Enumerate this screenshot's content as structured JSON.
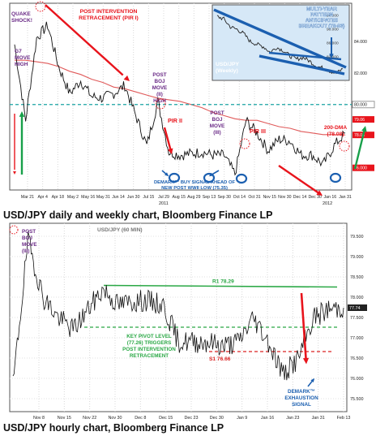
{
  "colors": {
    "price": "#111111",
    "annotation_red": "#e8141c",
    "annotation_purple": "#6a2a86",
    "annotation_green": "#18a04a",
    "annotation_blue": "#1b5fb0",
    "dma": "#e05a5a",
    "support_teal": "#1aa3a3",
    "resistance_green": "#2aa845",
    "support_red": "#d92020",
    "pivot_green": "#2aa845"
  },
  "captions": {
    "top": "USD/JPY daily and weekly chart, Bloomberg Finance LP",
    "bottom": "USD/JPY hourly chart, Bloomberg Finance LP"
  },
  "chart_data": [
    {
      "type": "line",
      "y_ticks": [
        "84.000",
        "82.000",
        "80.000",
        "78.000",
        "76.000"
      ],
      "x_labels": [
        "Mar 21",
        "Apr 4",
        "Apr 18",
        "May 2",
        "May 16",
        "May 31",
        "Jun 14",
        "Jun 30",
        "Jul 15",
        "Jul 29",
        "Aug 15",
        "Aug 29",
        "Sep 13",
        "Sep 30",
        "Oct 14",
        "Oct 31",
        "Nov 15",
        "Nov 30",
        "Dec 14",
        "Dec 30",
        "Jan 16",
        "Jan 31"
      ],
      "year_labels": [
        "2011",
        "2012"
      ],
      "right_value_tags": [
        "80.000",
        "79.06",
        "78.08",
        "76.000"
      ],
      "x": [
        "Mar 17",
        "Mar 21",
        "Apr 4",
        "Apr 6",
        "Apr 18",
        "May 2",
        "May 16",
        "May 31",
        "Jun 14",
        "Jun 30",
        "Jul 7",
        "Jul 15",
        "Jul 29",
        "Aug 4",
        "Aug 10",
        "Aug 15",
        "Aug 29",
        "Sep 13",
        "Sep 30",
        "Oct 14",
        "Oct 27",
        "Oct 31",
        "Nov 1",
        "Nov 15",
        "Nov 30",
        "Dec 14",
        "Dec 30",
        "Jan 16",
        "Jan 31",
        "Feb 8",
        "Feb 13"
      ],
      "series": [
        {
          "values": [
            83.8,
            79.0,
            84.2,
            85.0,
            82.4,
            80.7,
            81.5,
            80.5,
            80.4,
            80.7,
            81.2,
            79.3,
            77.4,
            80.2,
            77.0,
            76.8,
            76.9,
            77.0,
            76.8,
            76.8,
            75.6,
            79.0,
            78.2,
            77.1,
            77.8,
            77.7,
            76.8,
            76.8,
            76.2,
            77.4,
            78.2
          ]
        },
        {
          "name": "200-DMA (78.08)",
          "values": [
            82.8,
            82.8,
            82.7,
            82.6,
            82.4,
            82.1,
            81.9,
            81.6,
            81.4,
            81.1,
            81.0,
            80.8,
            80.6,
            80.4,
            80.3,
            80.2,
            80.0,
            79.8,
            79.5,
            79.3,
            79.1,
            79.0,
            79.0,
            78.8,
            78.6,
            78.5,
            78.3,
            78.2,
            78.1,
            78.1,
            78.08
          ]
        }
      ],
      "reference_lines": [
        {
          "y": 80.0
        }
      ],
      "annotations": {
        "quake_shock": "QUAKE SHOCK!",
        "g7_move_high": "G7 MOVE HIGH",
        "post_intervention": "POST INTERVENTION RETRACEMENT (PIR I)",
        "post_boj_ii": "POST BOJ MOVE (II) HIGH",
        "pir_ii": "PIR II",
        "post_boj_iii": "POST BOJ MOVE (III)",
        "pir_iii": "PIR III",
        "dma_label": "200-DMA (78.08)",
        "demark": "DEMARK™ BUY SIGNAL AHEAD OF NEW POST WWII LOW (75.35)"
      },
      "inset": {
        "title": "MULTI-YEAR PATTERN ANTICIPATES BREAKOUT (78-83)",
        "label": "USD/JPY (Weekly)",
        "y_ticks": [
          "94.000",
          "90.000",
          "86.000",
          "82.000"
        ],
        "x": [
          1,
          2,
          3,
          4,
          5,
          6,
          7,
          8,
          9,
          10,
          11,
          12,
          13,
          14,
          15,
          16,
          17,
          18,
          19,
          20
        ],
        "values": [
          93.5,
          92.8,
          90.5,
          89.8,
          88.6,
          86.3,
          85.5,
          84.8,
          83.2,
          84.6,
          83.7,
          82.1,
          81.2,
          81.7,
          80.6,
          79.2,
          78.6,
          77.8,
          77.1,
          78.4
        ]
      }
    },
    {
      "type": "line",
      "title": "USD/JPY (60 MIN)",
      "y_ticks": [
        "79.500",
        "79.000",
        "78.500",
        "78.000",
        "77.500",
        "77.000",
        "76.500",
        "76.000",
        "75.500"
      ],
      "x_labels": [
        "Nov 8",
        "Nov 15",
        "Nov 22",
        "Nov 30",
        "Dec 8",
        "Dec 15",
        "Dec 23",
        "Dec 30",
        "Jan 9",
        "Jan 16",
        "Jan 23",
        "Jan 31",
        "Feb 13"
      ],
      "year_labels": [
        "2011",
        "2012"
      ],
      "right_value_tags": [
        "77.74"
      ],
      "x": [
        "Nov 1",
        "Nov 2",
        "Nov 8",
        "Nov 15",
        "Nov 17",
        "Nov 22",
        "Nov 30",
        "Dec 1",
        "Dec 8",
        "Dec 15",
        "Dec 23",
        "Dec 30",
        "Jan 2",
        "Jan 9",
        "Jan 16",
        "Jan 23",
        "Jan 26",
        "Jan 31",
        "Feb 2",
        "Feb 6",
        "Feb 10",
        "Feb 13",
        "Feb 15"
      ],
      "series": [
        {
          "values": [
            75.8,
            79.4,
            78.0,
            77.5,
            77.2,
            77.7,
            78.2,
            77.8,
            77.9,
            77.9,
            77.8,
            76.9,
            76.9,
            76.9,
            76.8,
            76.9,
            77.5,
            76.9,
            76.1,
            76.5,
            77.5,
            77.7,
            77.74
          ]
        }
      ],
      "reference_lines": [
        {
          "label": "R1 78.29",
          "y": 78.29
        },
        {
          "label": "S1 76.66",
          "y": 76.66
        },
        {
          "y": 77.26
        }
      ],
      "annotations": {
        "post_boj_iii": "POST BOJ MOVE (III)",
        "r1": "R1 78.29",
        "s1": "S1 76.66",
        "pivot": "KEY PIVOT LEVEL (77.26) TRIGGERS POST INTERVENTION RETRACEMENT",
        "demark_exhaustion": "DEMARK™ EXHAUSTION SIGNAL"
      }
    }
  ]
}
